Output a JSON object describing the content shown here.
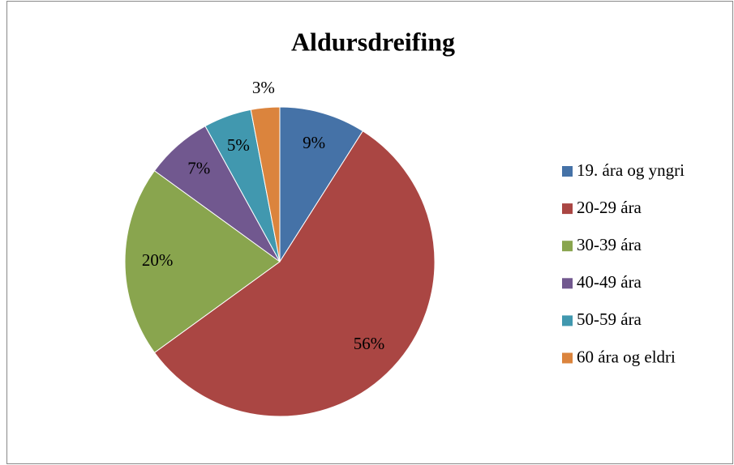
{
  "chart_data": {
    "type": "pie",
    "title": "Aldursdreifing",
    "categories": [
      "19. ára og yngri",
      "20-29 ára",
      "30-39 ára",
      "40-49 ára",
      "50-59 ára",
      "60 ára og eldri"
    ],
    "values": [
      9,
      56,
      20,
      7,
      5,
      3
    ],
    "value_labels": [
      "9%",
      "56%",
      "20%",
      "7%",
      "5%",
      "3%"
    ],
    "colors": [
      "#4572a7",
      "#aa4643",
      "#89a54e",
      "#71588f",
      "#4198af",
      "#db843d"
    ],
    "legend": "right"
  }
}
